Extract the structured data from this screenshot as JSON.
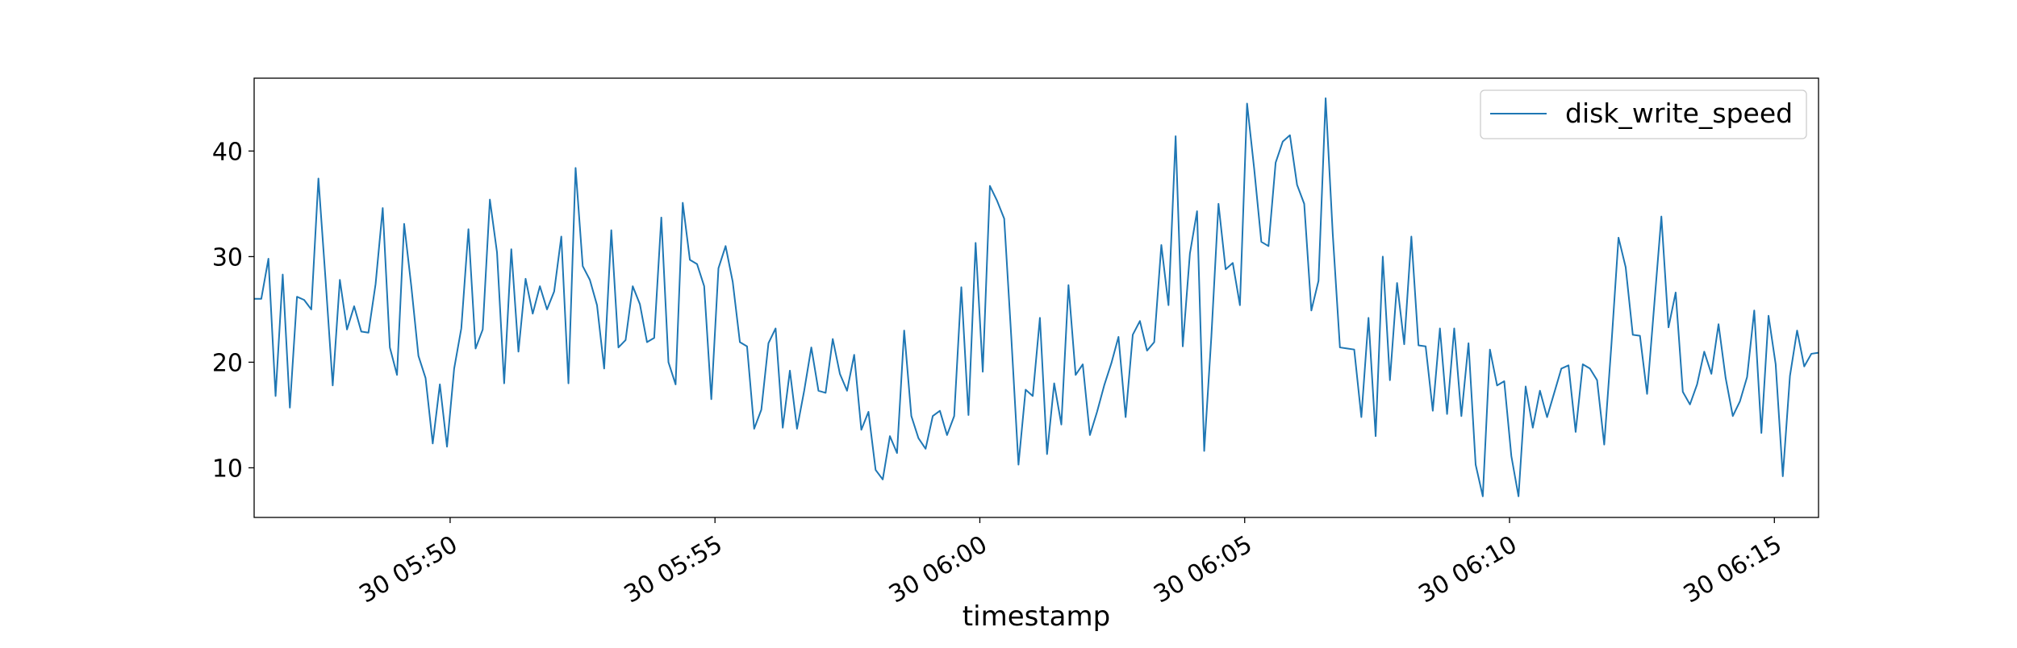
{
  "chart_data": {
    "type": "line",
    "xlabel": "timestamp",
    "ylabel": "",
    "title": "",
    "x_axis_type": "datetime",
    "xlim": [
      "2000-01-30 05:46:18",
      "2000-01-30 06:15:50"
    ],
    "ylim": [
      5.3,
      46.9
    ],
    "yticks": [
      10,
      20,
      30,
      40
    ],
    "xticks": [
      "30 05:50",
      "30 05:55",
      "30 06:00",
      "30 06:05",
      "30 06:10",
      "30 06:15"
    ],
    "xtick_times": [
      "2000-01-30 05:50:00",
      "2000-01-30 05:55:00",
      "2000-01-30 06:00:00",
      "2000-01-30 06:05:00",
      "2000-01-30 06:10:00",
      "2000-01-30 06:15:00"
    ],
    "grid": false,
    "legend_position": "top-right",
    "color": "#1f77b4",
    "series": [
      {
        "name": "disk_write_speed",
        "x_start": "2000-01-30 05:46:18",
        "x_end": "2000-01-30 06:15:50",
        "y": [
          26.0,
          26.0,
          29.8,
          16.8,
          28.3,
          15.7,
          26.2,
          25.9,
          25.0,
          37.4,
          27.8,
          17.8,
          27.8,
          23.1,
          25.3,
          22.9,
          22.8,
          27.4,
          34.6,
          21.4,
          18.8,
          33.1,
          27.2,
          20.6,
          18.5,
          12.3,
          17.9,
          12.0,
          19.4,
          23.2,
          32.6,
          21.3,
          23.1,
          35.4,
          30.4,
          18.0,
          30.7,
          21.0,
          27.9,
          24.6,
          27.2,
          25.0,
          26.7,
          31.9,
          18.0,
          38.4,
          29.1,
          27.8,
          25.4,
          19.4,
          32.5,
          21.4,
          22.1,
          27.2,
          25.5,
          21.9,
          22.3,
          33.7,
          20.0,
          17.9,
          35.1,
          29.7,
          29.3,
          27.2,
          16.5,
          28.9,
          31.0,
          27.6,
          21.9,
          21.5,
          13.7,
          15.5,
          21.8,
          23.2,
          13.8,
          19.2,
          13.7,
          17.3,
          21.4,
          17.3,
          17.1,
          22.2,
          18.9,
          17.3,
          20.7,
          13.6,
          15.3,
          9.8,
          8.9,
          13.0,
          11.4,
          23.0,
          14.9,
          12.8,
          11.8,
          14.9,
          15.4,
          13.1,
          14.9,
          27.1,
          15.0,
          31.3,
          19.1,
          36.7,
          35.3,
          33.6,
          22.3,
          10.3,
          17.4,
          16.8,
          24.2,
          11.3,
          18.0,
          14.1,
          27.3,
          18.8,
          19.8,
          13.1,
          15.3,
          17.8,
          19.9,
          22.4,
          14.8,
          22.6,
          23.9,
          21.1,
          21.9,
          31.1,
          25.4,
          41.4,
          21.5,
          30.3,
          34.3,
          11.6,
          22.4,
          35.0,
          28.8,
          29.4,
          25.4,
          44.5,
          38.3,
          31.4,
          31.0,
          38.9,
          40.9,
          41.5,
          36.8,
          35.0,
          24.9,
          27.7,
          45.0,
          32.1,
          21.4,
          21.3,
          21.2,
          14.8,
          24.2,
          13.0,
          30.0,
          18.3,
          27.5,
          21.7,
          31.9,
          21.6,
          21.5,
          15.4,
          23.2,
          15.1,
          23.2,
          14.9,
          21.8,
          10.3,
          7.3,
          21.2,
          17.8,
          18.2,
          11.1,
          7.3,
          17.7,
          13.8,
          17.3,
          14.8,
          17.1,
          19.4,
          19.7,
          13.4,
          19.8,
          19.4,
          18.3,
          12.2,
          21.6,
          31.8,
          29.0,
          22.6,
          22.5,
          17.0,
          25.4,
          33.8,
          23.3,
          26.6,
          17.2,
          16.0,
          17.9,
          21.0,
          18.9,
          23.6,
          18.5,
          14.9,
          16.3,
          18.6,
          24.9,
          13.3,
          24.4,
          19.8,
          9.2,
          18.7,
          23.0,
          19.6,
          20.8,
          20.9
        ]
      }
    ]
  }
}
